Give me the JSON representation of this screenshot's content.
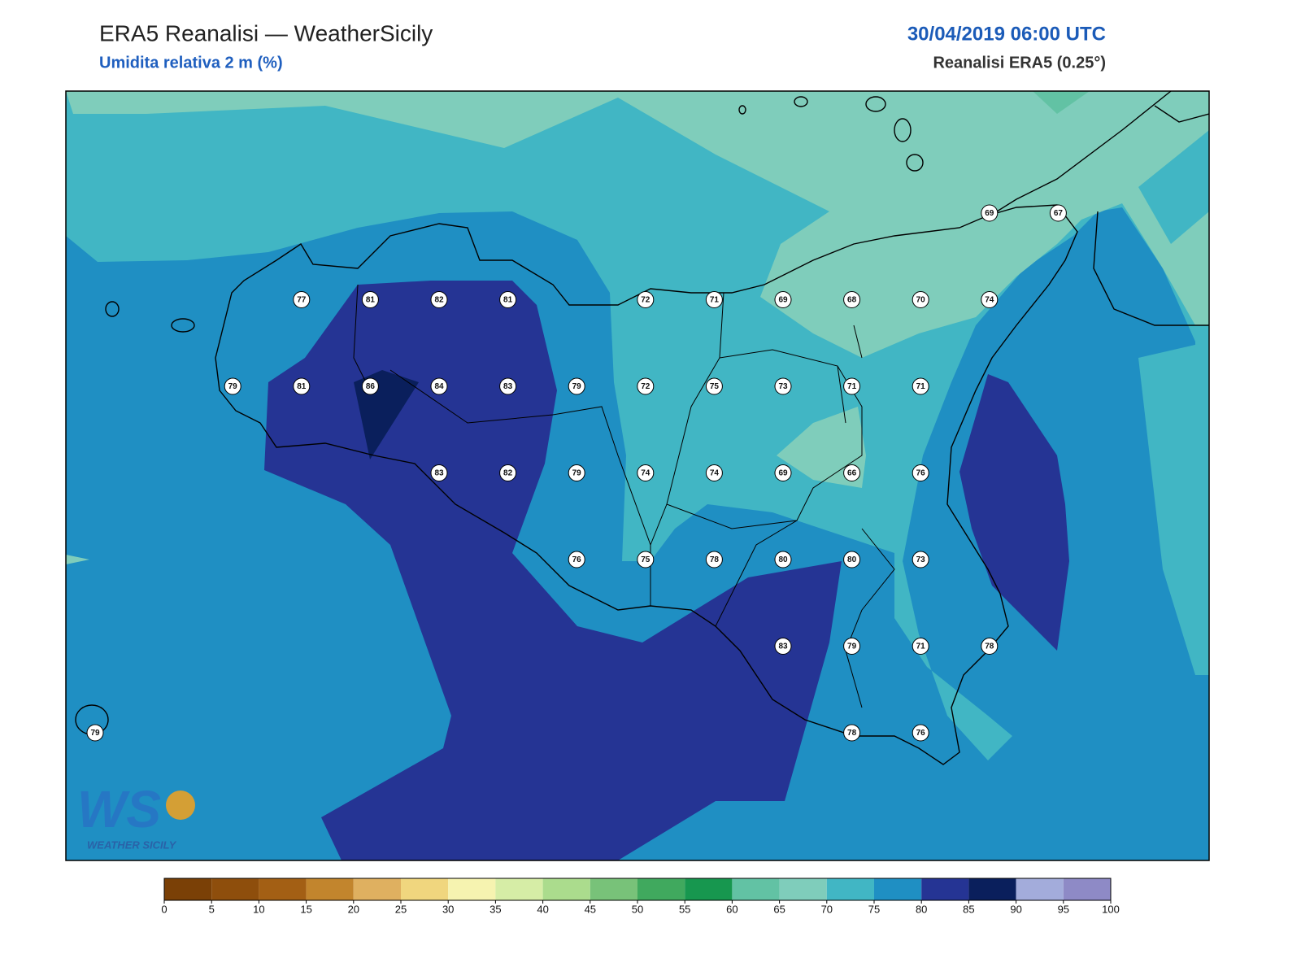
{
  "header": {
    "title": "ERA5 Reanalisi — WeatherSicily",
    "subtitle": "Umidita relativa 2 m (%)",
    "date": "30/04/2019 06:00 UTC",
    "source": "Reanalisi ERA5 (0.25°)"
  },
  "stations": [
    69,
    67,
    77,
    81,
    82,
    81,
    72,
    71,
    69,
    68,
    70,
    74,
    79,
    81,
    86,
    84,
    83,
    79,
    72,
    75,
    73,
    71,
    71,
    83,
    82,
    79,
    74,
    74,
    69,
    66,
    76,
    76,
    75,
    78,
    80,
    80,
    73,
    83,
    79,
    71,
    78,
    79,
    78,
    76
  ],
  "colorbar": {
    "range": [
      0,
      100
    ],
    "ticks": [
      0,
      5,
      10,
      15,
      20,
      25,
      30,
      35,
      40,
      45,
      50,
      55,
      60,
      65,
      70,
      75,
      80,
      85,
      90,
      95,
      100
    ],
    "colors": [
      "#7a4006",
      "#8e4e0c",
      "#a35f14",
      "#c2852d",
      "#dfb060",
      "#f0d67e",
      "#f6f3b0",
      "#d6eda6",
      "#abdc8d",
      "#78c279",
      "#40a95e",
      "#17974f",
      "#62c2a4",
      "#7fcdbb",
      "#41b6c4",
      "#1f8fc3",
      "#253494",
      "#0a1f5c",
      "#a3acdb",
      "#8e8ac6"
    ]
  },
  "logo": {
    "initials": "WS",
    "name": "WEATHER SICILY"
  }
}
